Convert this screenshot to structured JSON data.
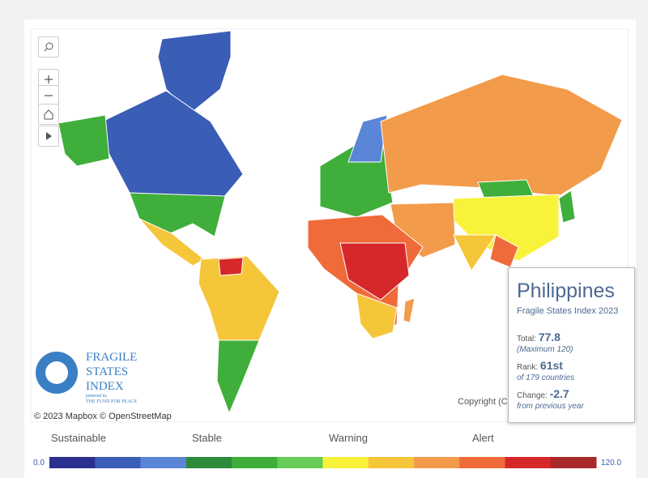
{
  "map": {
    "attribution": [
      "© 2023 Mapbox",
      "© OpenStreetMap"
    ],
    "copyright": "Copyright (C",
    "logo": {
      "lines": [
        "FRAGILE",
        "STATES",
        "INDEX"
      ],
      "powered": "powered by",
      "org": "THE FUND FOR PEACE"
    }
  },
  "tooltip": {
    "country": "Philippines",
    "subtitle": "Fragile States Index 2023",
    "total_label": "Total:",
    "total": 77.8,
    "total_note": "(Maximum 120)",
    "rank_label": "Rank:",
    "rank": "61st",
    "rank_note": "of 179 countries",
    "change_label": "Change:",
    "change": -2.7,
    "change_note": "from previous year"
  },
  "legend": {
    "categories": [
      "Sustainable",
      "Stable",
      "Warning",
      "Alert"
    ],
    "range": [
      {
        "value": 0,
        "label": "0.0"
      },
      {
        "value": 120,
        "label": "120.0"
      }
    ],
    "colors": [
      "#2b2f8f",
      "#3a5db5",
      "#5b85d6",
      "#2e8b3a",
      "#3fae3a",
      "#66cc55",
      "#f8f23a",
      "#f5c63a",
      "#f29b4a",
      "#f06b3a",
      "#d6282b",
      "#a82a2a"
    ]
  }
}
